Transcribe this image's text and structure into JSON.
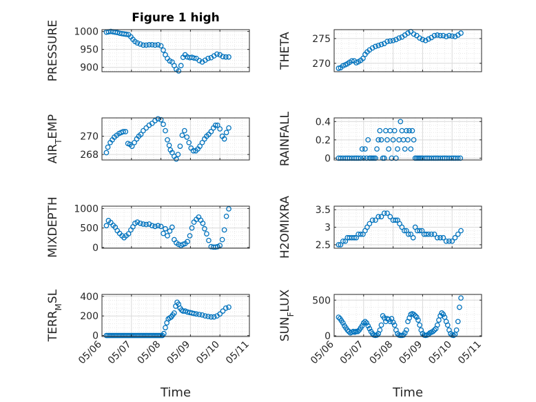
{
  "figure": {
    "title": "Figure 1 high",
    "xlabel": "Time",
    "x_ticks": [
      "05/06",
      "05/07",
      "05/08",
      "05/09",
      "05/10",
      "05/11"
    ],
    "marker_color": "#0072bd",
    "grid_color": "#dddddd"
  },
  "chart_data": [
    {
      "type": "scatter",
      "id": "pressure",
      "ylabel": "PRESSURE",
      "xlim": [
        0,
        5
      ],
      "ylim": [
        888,
        1005
      ],
      "yticks": [
        900,
        950,
        1000
      ],
      "x": [
        0.15,
        0.22,
        0.3,
        0.38,
        0.45,
        0.52,
        0.6,
        0.68,
        0.75,
        0.82,
        0.9,
        0.98,
        1.05,
        1.12,
        1.2,
        1.3,
        1.4,
        1.5,
        1.6,
        1.7,
        1.8,
        1.9,
        2.0,
        2.08,
        2.15,
        2.22,
        2.3,
        2.38,
        2.45,
        2.52,
        2.6,
        2.68,
        2.75,
        2.82,
        2.9,
        2.98,
        3.05,
        3.12,
        3.2,
        3.3,
        3.4,
        3.5,
        3.6,
        3.7,
        3.8,
        3.9,
        4.0,
        4.1,
        4.2,
        4.3
      ],
      "y": [
        998,
        999,
        1000,
        999,
        998,
        997,
        995,
        994,
        993,
        992,
        991,
        985,
        978,
        972,
        968,
        965,
        962,
        962,
        963,
        963,
        962,
        963,
        960,
        948,
        935,
        925,
        918,
        915,
        905,
        895,
        890,
        905,
        928,
        935,
        929,
        927,
        928,
        926,
        925,
        919,
        915,
        920,
        925,
        927,
        932,
        937,
        935,
        930,
        929,
        929
      ]
    },
    {
      "type": "scatter",
      "id": "theta",
      "ylabel": "THETA",
      "xlim": [
        0,
        5
      ],
      "ylim": [
        268.3,
        276.8
      ],
      "yticks": [
        270,
        275
      ],
      "x": [
        0.15,
        0.22,
        0.3,
        0.38,
        0.45,
        0.52,
        0.6,
        0.68,
        0.75,
        0.82,
        0.9,
        0.98,
        1.05,
        1.12,
        1.2,
        1.3,
        1.4,
        1.5,
        1.6,
        1.7,
        1.8,
        1.9,
        2.0,
        2.1,
        2.2,
        2.3,
        2.4,
        2.5,
        2.6,
        2.7,
        2.8,
        2.9,
        3.0,
        3.1,
        3.2,
        3.3,
        3.4,
        3.5,
        3.6,
        3.7,
        3.8,
        3.9,
        4.0,
        4.1,
        4.2,
        4.3
      ],
      "y": [
        269.0,
        269.1,
        269.5,
        269.7,
        269.9,
        270.2,
        270.5,
        270.5,
        270.1,
        270.3,
        270.6,
        271.0,
        271.8,
        272.3,
        272.7,
        273.1,
        273.4,
        273.6,
        273.8,
        274.0,
        274.4,
        274.5,
        274.6,
        274.8,
        275.1,
        275.3,
        275.7,
        276.1,
        276.4,
        275.9,
        275.6,
        275.1,
        274.8,
        274.6,
        274.9,
        275.2,
        275.6,
        275.7,
        275.6,
        275.6,
        275.4,
        275.6,
        275.5,
        275.4,
        275.7,
        276.1
      ]
    },
    {
      "type": "scatter",
      "id": "air_temp",
      "ylabel": "AIR",
      "ylabel_sub": "T",
      "ylabel_rest": "EMP",
      "xlim": [
        0,
        5
      ],
      "ylim": [
        267.4,
        272.0
      ],
      "yticks": [
        268,
        270
      ],
      "x": [
        0.15,
        0.2,
        0.28,
        0.35,
        0.42,
        0.5,
        0.58,
        0.65,
        0.72,
        0.8,
        0.88,
        0.95,
        1.02,
        1.1,
        1.18,
        1.25,
        1.32,
        1.4,
        1.5,
        1.6,
        1.7,
        1.8,
        1.9,
        2.0,
        2.08,
        2.15,
        2.22,
        2.28,
        2.32,
        2.38,
        2.45,
        2.52,
        2.58,
        2.65,
        2.72,
        2.8,
        2.88,
        2.95,
        3.02,
        3.1,
        3.18,
        3.25,
        3.32,
        3.4,
        3.48,
        3.55,
        3.62,
        3.7,
        3.78,
        3.85,
        3.92,
        4.0,
        4.08,
        4.15,
        4.22,
        4.3
      ],
      "y": [
        268.2,
        268.8,
        269.3,
        269.6,
        269.9,
        270.1,
        270.3,
        270.4,
        270.5,
        270.5,
        269.2,
        269.1,
        268.9,
        269.3,
        269.7,
        270.0,
        270.2,
        270.6,
        270.9,
        271.2,
        271.4,
        271.7,
        271.9,
        271.8,
        271.3,
        270.6,
        269.6,
        269.0,
        268.5,
        268.2,
        267.8,
        267.5,
        268.0,
        268.9,
        270.1,
        270.6,
        269.9,
        269.3,
        268.7,
        268.4,
        268.4,
        268.6,
        268.9,
        269.3,
        269.7,
        270.0,
        270.2,
        270.5,
        270.9,
        271.2,
        271.2,
        270.8,
        270.0,
        269.7,
        270.4,
        270.9
      ]
    },
    {
      "type": "scatter",
      "id": "rainfall",
      "ylabel": "RAINFALL",
      "xlim": [
        0,
        5
      ],
      "ylim": [
        -0.02,
        0.44
      ],
      "yticks": [
        0,
        0.2,
        0.4
      ],
      "ytick_labels": [
        "0",
        "0.2",
        "0.4"
      ],
      "x": [
        0.15,
        0.22,
        0.3,
        0.38,
        0.45,
        0.52,
        0.6,
        0.68,
        0.75,
        0.82,
        0.9,
        0.95,
        1.0,
        1.05,
        1.1,
        1.15,
        1.2,
        1.25,
        1.3,
        1.35,
        1.4,
        1.45,
        1.5,
        1.55,
        1.6,
        1.65,
        1.7,
        1.75,
        1.8,
        1.85,
        1.9,
        1.95,
        2.0,
        2.05,
        2.1,
        2.15,
        2.2,
        2.25,
        2.3,
        2.35,
        2.4,
        2.45,
        2.5,
        2.55,
        2.6,
        2.65,
        2.7,
        2.75,
        2.8,
        2.85,
        2.9,
        2.95,
        3.0,
        3.08,
        3.15,
        3.22,
        3.3,
        3.38,
        3.45,
        3.52,
        3.6,
        3.68,
        3.75,
        3.82,
        3.9,
        3.98,
        4.05,
        4.12,
        4.2,
        4.28
      ],
      "y": [
        0,
        0,
        0,
        0,
        0,
        0,
        0,
        0,
        0,
        0,
        0,
        0.1,
        0,
        0.1,
        0,
        0.2,
        0,
        0,
        0,
        0,
        0,
        0.1,
        0.2,
        0.3,
        0.2,
        0,
        0,
        0.3,
        0.2,
        0.1,
        0.3,
        0,
        0.2,
        0.3,
        0,
        0.1,
        0.2,
        0.4,
        0.3,
        0.2,
        0.1,
        0.3,
        0.2,
        0.3,
        0.1,
        0.3,
        0.2,
        0,
        0,
        0,
        0,
        0,
        0,
        0,
        0,
        0,
        0,
        0,
        0,
        0,
        0,
        0,
        0,
        0,
        0,
        0,
        0,
        0,
        0,
        0
      ]
    },
    {
      "type": "scatter",
      "id": "mixdepth",
      "ylabel": "MIXDEPTH",
      "xlim": [
        0,
        5
      ],
      "ylim": [
        -20,
        1060
      ],
      "yticks": [
        0,
        500,
        1000
      ],
      "x": [
        0.15,
        0.22,
        0.3,
        0.38,
        0.45,
        0.52,
        0.6,
        0.68,
        0.75,
        0.82,
        0.9,
        0.98,
        1.05,
        1.12,
        1.2,
        1.3,
        1.4,
        1.5,
        1.6,
        1.7,
        1.8,
        1.9,
        2.0,
        2.08,
        2.15,
        2.22,
        2.3,
        2.38,
        2.45,
        2.52,
        2.6,
        2.68,
        2.75,
        2.82,
        2.9,
        2.98,
        3.05,
        3.12,
        3.2,
        3.28,
        3.35,
        3.42,
        3.48,
        3.55,
        3.62,
        3.7,
        3.78,
        3.85,
        3.92,
        4.0,
        4.08,
        4.15,
        4.22,
        4.3
      ],
      "y": [
        560,
        690,
        640,
        570,
        520,
        430,
        360,
        300,
        250,
        300,
        350,
        450,
        530,
        620,
        650,
        620,
        600,
        590,
        600,
        560,
        540,
        560,
        540,
        360,
        480,
        300,
        420,
        520,
        200,
        120,
        80,
        50,
        80,
        100,
        150,
        300,
        500,
        650,
        720,
        780,
        700,
        620,
        480,
        350,
        180,
        20,
        10,
        10,
        20,
        50,
        200,
        450,
        800,
        990
      ]
    },
    {
      "type": "scatter",
      "id": "h2omixra",
      "ylabel": "H2OMIXRA",
      "xlim": [
        0,
        5
      ],
      "ylim": [
        2.4,
        3.6
      ],
      "yticks": [
        2.5,
        3,
        3.5
      ],
      "ytick_labels": [
        "2.5",
        "3",
        "3.5"
      ],
      "x": [
        0.15,
        0.22,
        0.3,
        0.38,
        0.45,
        0.52,
        0.6,
        0.68,
        0.75,
        0.82,
        0.9,
        0.98,
        1.05,
        1.12,
        1.2,
        1.3,
        1.4,
        1.5,
        1.6,
        1.7,
        1.8,
        1.9,
        2.0,
        2.08,
        2.15,
        2.22,
        2.3,
        2.38,
        2.45,
        2.52,
        2.6,
        2.68,
        2.75,
        2.82,
        2.9,
        2.98,
        3.05,
        3.12,
        3.2,
        3.3,
        3.4,
        3.5,
        3.6,
        3.7,
        3.8,
        3.9,
        4.0,
        4.1,
        4.2,
        4.3
      ],
      "y": [
        2.5,
        2.5,
        2.6,
        2.6,
        2.7,
        2.7,
        2.7,
        2.7,
        2.7,
        2.8,
        2.8,
        2.8,
        2.9,
        3.0,
        3.1,
        3.2,
        3.2,
        3.3,
        3.3,
        3.4,
        3.4,
        3.3,
        3.2,
        3.2,
        3.2,
        3.1,
        3.0,
        2.9,
        2.9,
        2.8,
        2.8,
        2.7,
        3.0,
        2.9,
        2.9,
        2.9,
        2.8,
        2.8,
        2.8,
        2.8,
        2.8,
        2.7,
        2.7,
        2.7,
        2.6,
        2.6,
        2.6,
        2.7,
        2.8,
        2.9
      ]
    },
    {
      "type": "scatter",
      "id": "terr_msl",
      "ylabel": "TERR",
      "ylabel_sub": "M",
      "ylabel_rest": "SL",
      "xlim": [
        0,
        5
      ],
      "ylim": [
        -10,
        420
      ],
      "yticks": [
        0,
        200,
        400
      ],
      "x": [
        0.15,
        0.2,
        0.25,
        0.3,
        0.35,
        0.4,
        0.45,
        0.5,
        0.55,
        0.6,
        0.65,
        0.7,
        0.75,
        0.8,
        0.85,
        0.9,
        0.95,
        1.0,
        1.05,
        1.1,
        1.15,
        1.2,
        1.25,
        1.3,
        1.35,
        1.4,
        1.45,
        1.5,
        1.55,
        1.6,
        1.65,
        1.7,
        1.75,
        1.8,
        1.85,
        1.9,
        1.95,
        2.0,
        2.05,
        2.1,
        2.15,
        2.2,
        2.25,
        2.3,
        2.35,
        2.4,
        2.45,
        2.5,
        2.55,
        2.6,
        2.65,
        2.7,
        2.75,
        2.82,
        2.9,
        2.98,
        3.05,
        3.12,
        3.2,
        3.3,
        3.4,
        3.5,
        3.6,
        3.7,
        3.8,
        3.9,
        4.0,
        4.1,
        4.2,
        4.3
      ],
      "y": [
        0,
        0,
        0,
        0,
        0,
        0,
        0,
        0,
        0,
        0,
        0,
        0,
        0,
        0,
        0,
        0,
        0,
        0,
        0,
        0,
        0,
        0,
        0,
        0,
        0,
        0,
        0,
        0,
        0,
        0,
        0,
        0,
        0,
        0,
        0,
        0,
        0,
        0,
        0,
        20,
        80,
        130,
        170,
        180,
        190,
        210,
        230,
        300,
        340,
        320,
        280,
        260,
        250,
        250,
        240,
        235,
        230,
        225,
        220,
        215,
        210,
        200,
        195,
        190,
        190,
        200,
        220,
        250,
        280,
        290
      ]
    },
    {
      "type": "scatter",
      "id": "sun_flux",
      "ylabel": "SUN",
      "ylabel_sub": "F",
      "ylabel_rest": "LUX",
      "xlim": [
        0,
        5
      ],
      "ylim": [
        -10,
        580
      ],
      "yticks": [
        0,
        500
      ],
      "x": [
        0.15,
        0.2,
        0.25,
        0.3,
        0.35,
        0.4,
        0.45,
        0.5,
        0.55,
        0.6,
        0.65,
        0.7,
        0.75,
        0.8,
        0.85,
        0.9,
        0.95,
        1.0,
        1.05,
        1.1,
        1.15,
        1.2,
        1.25,
        1.3,
        1.35,
        1.4,
        1.45,
        1.5,
        1.55,
        1.6,
        1.65,
        1.7,
        1.75,
        1.8,
        1.85,
        1.9,
        1.95,
        2.0,
        2.05,
        2.1,
        2.15,
        2.2,
        2.25,
        2.3,
        2.35,
        2.4,
        2.45,
        2.5,
        2.55,
        2.6,
        2.65,
        2.7,
        2.75,
        2.8,
        2.85,
        2.9,
        2.95,
        3.0,
        3.05,
        3.1,
        3.15,
        3.2,
        3.25,
        3.3,
        3.35,
        3.4,
        3.45,
        3.5,
        3.55,
        3.6,
        3.65,
        3.7,
        3.75,
        3.8,
        3.85,
        3.9,
        3.95,
        4.0,
        4.05,
        4.1,
        4.15,
        4.2,
        4.25,
        4.3
      ],
      "y": [
        260,
        240,
        210,
        180,
        140,
        110,
        80,
        60,
        40,
        50,
        60,
        50,
        60,
        60,
        80,
        110,
        140,
        180,
        200,
        180,
        140,
        100,
        60,
        30,
        10,
        5,
        10,
        30,
        80,
        150,
        280,
        250,
        200,
        240,
        230,
        200,
        240,
        190,
        150,
        80,
        30,
        10,
        5,
        5,
        10,
        40,
        80,
        200,
        250,
        300,
        310,
        300,
        280,
        260,
        220,
        150,
        80,
        30,
        10,
        5,
        10,
        20,
        40,
        50,
        60,
        80,
        100,
        150,
        220,
        280,
        320,
        300,
        260,
        200,
        150,
        80,
        30,
        10,
        5,
        20,
        80,
        200,
        400,
        530
      ]
    }
  ]
}
